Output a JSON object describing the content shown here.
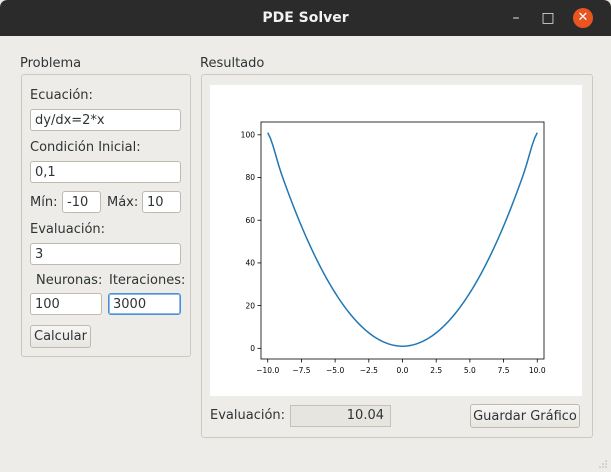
{
  "window": {
    "title": "PDE Solver",
    "controls": {
      "minimize": "–",
      "maximize": "□",
      "close": "✕"
    }
  },
  "problem": {
    "group_title": "Problema",
    "equation_label": "Ecuación:",
    "equation_value": "dy/dx=2*x",
    "initial_label": "Condición Inicial:",
    "initial_value": "0,1",
    "min_label": "Mín:",
    "min_value": "-10",
    "max_label": "Máx:",
    "max_value": "10",
    "evaluation_label": "Evaluación:",
    "evaluation_value": "3",
    "neurons_label": "Neuronas:",
    "neurons_value": "100",
    "iterations_label": "Iteraciones:",
    "iterations_value": "3000",
    "calculate_label": "Calcular"
  },
  "result": {
    "group_title": "Resultado",
    "evaluation_label": "Evaluación:",
    "evaluation_value": "10.04",
    "save_label": "Guardar Gráfico"
  },
  "colors": {
    "line": "#1f77b4",
    "close_button": "#e95420",
    "titlebar": "#2b2b2b"
  },
  "chart_data": {
    "type": "line",
    "title": "",
    "xlabel": "",
    "ylabel": "",
    "xlim": [
      -10.5,
      10.5
    ],
    "ylim": [
      -5,
      106
    ],
    "xticks": [
      -10.0,
      -7.5,
      -5.0,
      -2.5,
      0.0,
      2.5,
      5.0,
      7.5,
      10.0
    ],
    "xtick_labels": [
      "−10.0",
      "−7.5",
      "−5.0",
      "−2.5",
      "0.0",
      "2.5",
      "5.0",
      "7.5",
      "10.0"
    ],
    "yticks": [
      0,
      20,
      40,
      60,
      80,
      100
    ],
    "ytick_labels": [
      "0",
      "20",
      "40",
      "60",
      "80",
      "100"
    ],
    "grid": false,
    "series": [
      {
        "x": [
          -10,
          -9,
          -8,
          -7,
          -6,
          -5,
          -4,
          -3,
          -2,
          -1,
          0,
          1,
          2,
          3,
          4,
          5,
          6,
          7,
          8,
          9,
          10
        ],
        "y": [
          101,
          82,
          65,
          50,
          37,
          26,
          17,
          10,
          5,
          2,
          1,
          2,
          5,
          10,
          17,
          26,
          37,
          50,
          65,
          82,
          101
        ]
      }
    ]
  }
}
